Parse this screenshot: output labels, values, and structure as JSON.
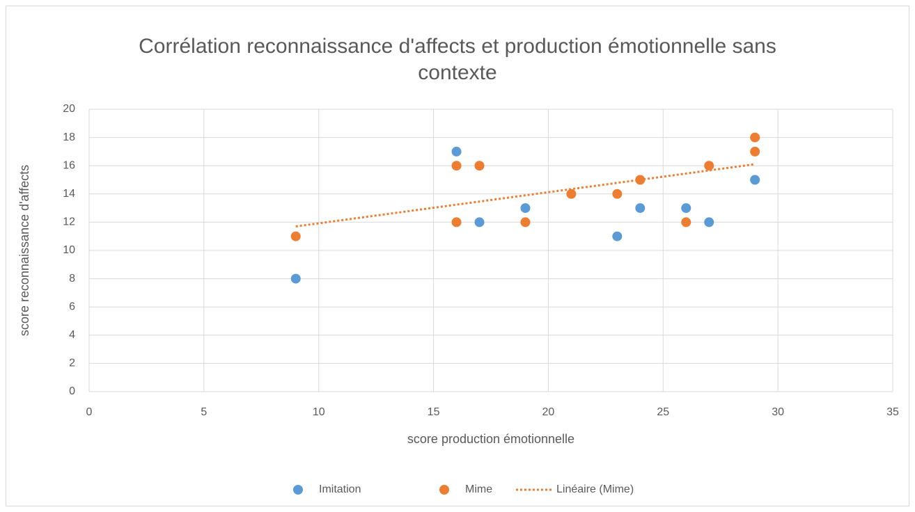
{
  "chart_data": {
    "type": "scatter",
    "title": "Corrélation reconnaissance d'affects et production émotionnelle sans contexte",
    "x_label": "score production émotionnelle",
    "y_label": "score reconnaissance d'affects",
    "xlim": [
      0,
      35
    ],
    "xticks": [
      0,
      5,
      10,
      15,
      20,
      25,
      30,
      35
    ],
    "ylim": [
      0,
      20
    ],
    "yticks": [
      0,
      2,
      4,
      6,
      8,
      10,
      12,
      14,
      16,
      18,
      20
    ],
    "grid": true,
    "legend": "bottom",
    "series": [
      {
        "name": "Imitation",
        "color": "#5b9bd5",
        "x": [
          9,
          16,
          17,
          19,
          23,
          24,
          26,
          27,
          29
        ],
        "values": [
          8,
          17,
          12,
          13,
          11,
          13,
          13,
          12,
          15
        ]
      },
      {
        "name": "Mime",
        "color": "#ed7d31",
        "x": [
          9,
          16,
          16,
          17,
          19,
          21,
          23,
          24,
          26,
          27,
          29,
          29
        ],
        "values": [
          11,
          16,
          12,
          16,
          12,
          14,
          14,
          15,
          12,
          16,
          18,
          17
        ]
      }
    ],
    "trendline": {
      "name": "Linéaire (Mime)",
      "series": 1,
      "color": "#ed7d31"
    }
  }
}
